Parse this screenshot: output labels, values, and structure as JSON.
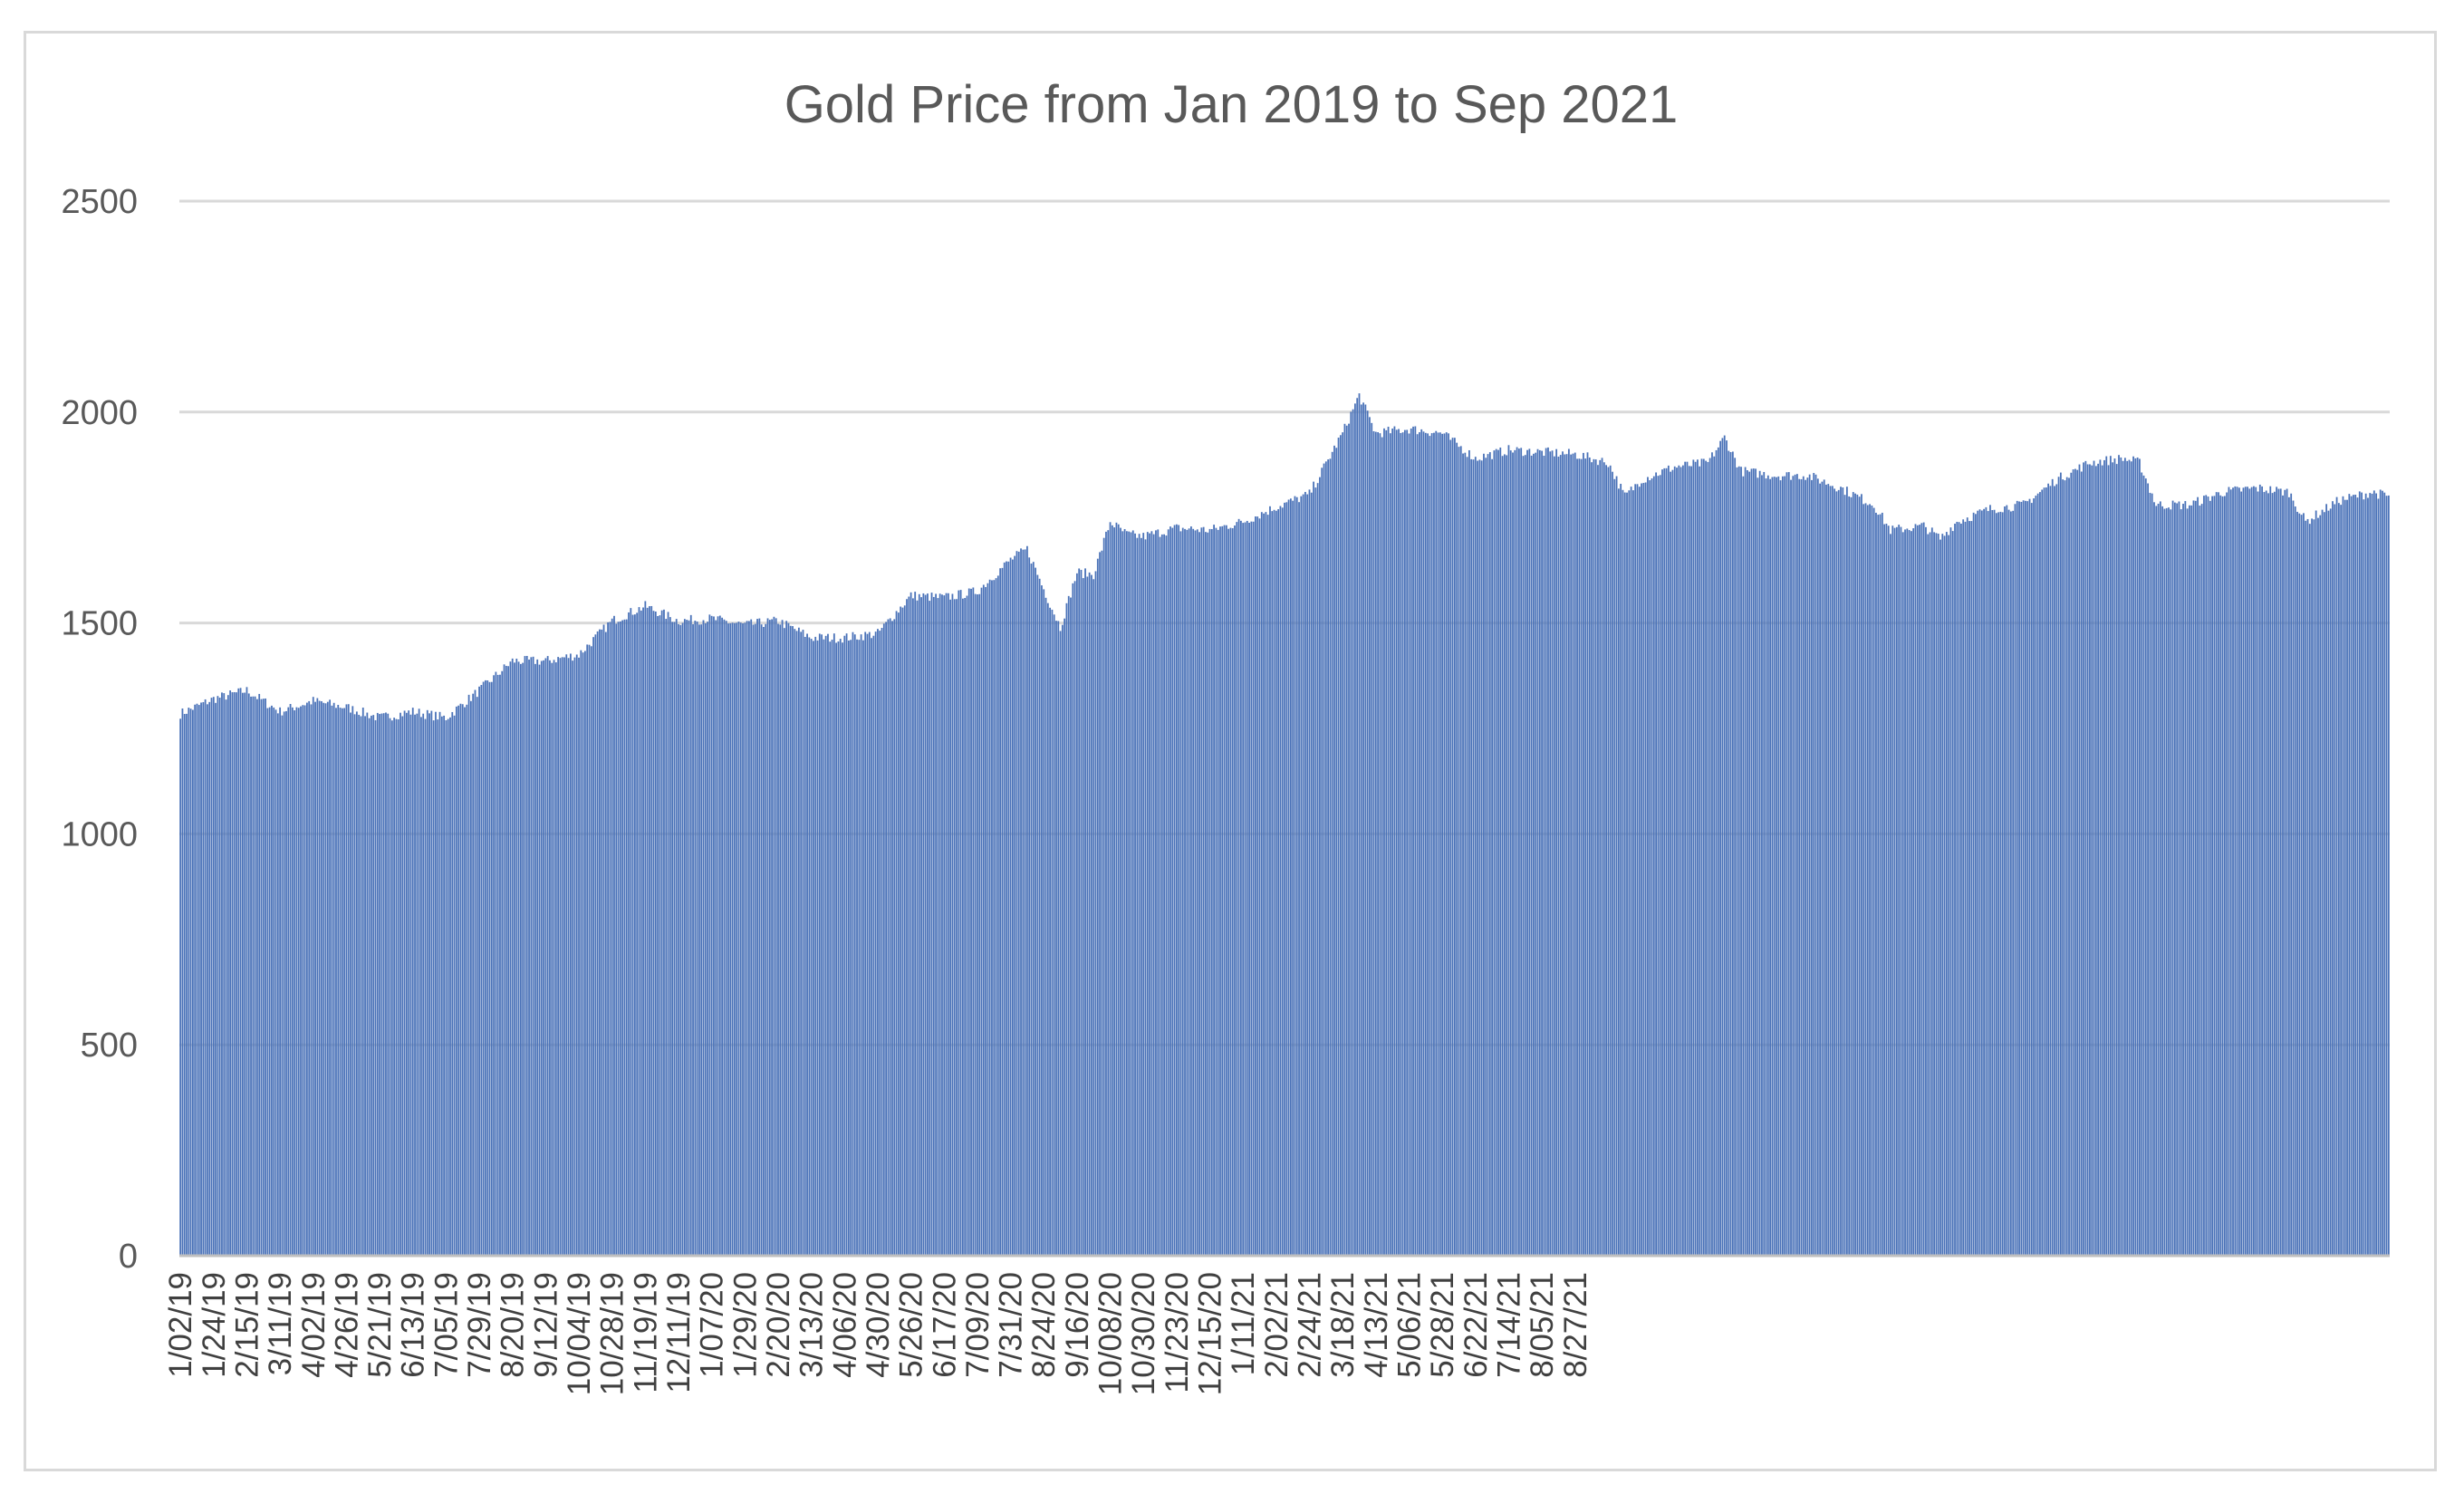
{
  "chart_data": {
    "type": "bar",
    "title": "Gold Price from Jan 2019 to Sep 2021",
    "xlabel": "",
    "ylabel": "",
    "ylim": [
      0,
      2500
    ],
    "yticks": [
      0,
      500,
      1000,
      1500,
      2000,
      2500
    ],
    "grid": true,
    "legend": "none",
    "bar_color": "#4a72b8",
    "categories": [
      "1/02/19",
      "1/24/19",
      "2/15/19",
      "3/11/19",
      "4/02/19",
      "4/26/19",
      "5/21/19",
      "6/13/19",
      "7/05/19",
      "7/29/19",
      "8/20/19",
      "9/12/19",
      "10/04/19",
      "10/28/19",
      "11/19/19",
      "12/11/19",
      "1/07/20",
      "1/29/20",
      "2/20/20",
      "3/13/20",
      "4/06/20",
      "4/30/20",
      "5/26/20",
      "6/17/20",
      "7/09/20",
      "7/31/20",
      "8/24/20",
      "9/16/20",
      "10/08/20",
      "10/30/20",
      "11/23/20",
      "12/15/20",
      "1/11/21",
      "2/02/21",
      "2/24/21",
      "3/18/21",
      "4/13/21",
      "5/06/21",
      "5/28/21",
      "6/22/21",
      "7/14/21",
      "8/05/21",
      "8/27/21"
    ],
    "price_path": [
      [
        0,
        1285
      ],
      [
        16,
        1320
      ],
      [
        32,
        1340
      ],
      [
        48,
        1290
      ],
      [
        64,
        1315
      ],
      [
        80,
        1300
      ],
      [
        96,
        1275
      ],
      [
        112,
        1290
      ],
      [
        128,
        1275
      ],
      [
        144,
        1340
      ],
      [
        160,
        1410
      ],
      [
        176,
        1410
      ],
      [
        192,
        1425
      ],
      [
        208,
        1505
      ],
      [
        224,
        1540
      ],
      [
        240,
        1505
      ],
      [
        256,
        1510
      ],
      [
        272,
        1495
      ],
      [
        288,
        1505
      ],
      [
        304,
        1465
      ],
      [
        320,
        1465
      ],
      [
        336,
        1475
      ],
      [
        352,
        1565
      ],
      [
        368,
        1560
      ],
      [
        384,
        1575
      ],
      [
        400,
        1650
      ],
      [
        408,
        1675
      ],
      [
        416,
        1580
      ],
      [
        424,
        1490
      ],
      [
        432,
        1620
      ],
      [
        440,
        1615
      ],
      [
        448,
        1740
      ],
      [
        456,
        1710
      ],
      [
        464,
        1705
      ],
      [
        480,
        1725
      ],
      [
        496,
        1720
      ],
      [
        512,
        1740
      ],
      [
        528,
        1775
      ],
      [
        544,
        1805
      ],
      [
        560,
        1950
      ],
      [
        568,
        2040
      ],
      [
        576,
        1950
      ],
      [
        592,
        1960
      ],
      [
        608,
        1950
      ],
      [
        624,
        1890
      ],
      [
        640,
        1910
      ],
      [
        656,
        1905
      ],
      [
        672,
        1900
      ],
      [
        688,
        1880
      ],
      [
        696,
        1800
      ],
      [
        704,
        1840
      ],
      [
        720,
        1870
      ],
      [
        736,
        1880
      ],
      [
        744,
        1940
      ],
      [
        752,
        1860
      ],
      [
        768,
        1850
      ],
      [
        784,
        1850
      ],
      [
        800,
        1820
      ],
      [
        816,
        1780
      ],
      [
        824,
        1720
      ],
      [
        840,
        1730
      ],
      [
        848,
        1700
      ],
      [
        856,
        1740
      ],
      [
        872,
        1770
      ],
      [
        888,
        1780
      ],
      [
        904,
        1840
      ],
      [
        920,
        1880
      ],
      [
        936,
        1890
      ],
      [
        944,
        1880
      ],
      [
        952,
        1780
      ],
      [
        968,
        1780
      ],
      [
        984,
        1810
      ],
      [
        1000,
        1820
      ],
      [
        1016,
        1810
      ],
      [
        1024,
        1740
      ],
      [
        1040,
        1790
      ],
      [
        1056,
        1810
      ],
      [
        1064,
        1800
      ]
    ]
  }
}
